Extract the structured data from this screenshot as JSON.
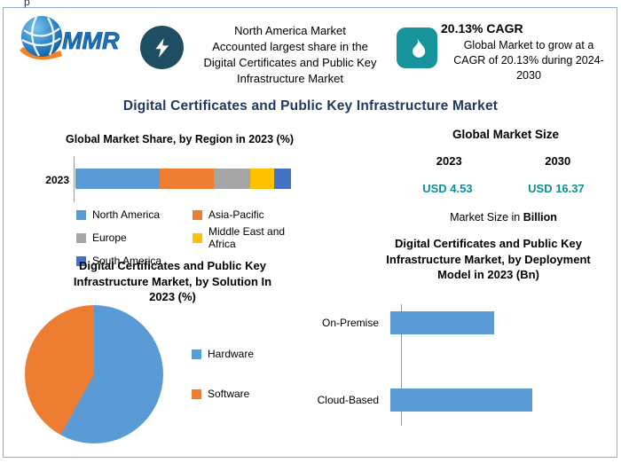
{
  "stray_text": "p",
  "title": "Digital Certificates and Public Key Infrastructure Market",
  "colors": {
    "title": "#1F3864",
    "teal": "#0E8F8F",
    "icon_dark": "#1F4E63",
    "icon_teal": "#17949B",
    "border": "#8FAADC",
    "axis": "#9A9A9A"
  },
  "header": {
    "logo_text": "MMR",
    "callout_share": {
      "text": "North America Market\nAccounted largest share in the\nDigital Certificates and Public Key\nInfrastructure Market"
    },
    "callout_cagr": {
      "title": "20.13% CAGR",
      "text": "Global Market to grow at a\nCAGR of 20.13% during 2024-\n2030"
    }
  },
  "market_size": {
    "title": "Global Market Size",
    "years": [
      "2023",
      "2030"
    ],
    "values": [
      "USD 4.53",
      "USD 16.37"
    ],
    "note_prefix": "Market Size in ",
    "note_unit": "Billion"
  },
  "chart_data": [
    {
      "type": "bar",
      "variant": "stacked-horizontal",
      "title": "Global Market Share, by Region in 2023 (%)",
      "categories": [
        "2023"
      ],
      "xlim": [
        0,
        100
      ],
      "legend_position": "bottom",
      "series": [
        {
          "name": "North America",
          "value": 39,
          "color": "#5B9BD5"
        },
        {
          "name": "Asia-Pacific",
          "value": 25,
          "color": "#ED7D31"
        },
        {
          "name": "Europe",
          "value": 17,
          "color": "#A5A5A5"
        },
        {
          "name": "Middle East and Africa",
          "value": 11,
          "color": "#FFC000"
        },
        {
          "name": "South America",
          "value": 8,
          "color": "#4472C4"
        }
      ]
    },
    {
      "type": "pie",
      "title": "Digital Certificates and Public Key\nInfrastructure Market, by Solution In\n2023 (%)",
      "labels": [
        "Hardware",
        "Software"
      ],
      "values": [
        58,
        42
      ],
      "colors": [
        "#5B9BD5",
        "#ED7D31"
      ],
      "legend_position": "right"
    },
    {
      "type": "bar",
      "variant": "horizontal",
      "title": "Digital Certificates and Public Key\nInfrastructure Market, by Deployment\nModel in 2023 (Bn)",
      "categories": [
        "On-Premise",
        "Cloud-Based"
      ],
      "values": [
        1.9,
        2.6
      ],
      "color": "#5B9BD5"
    }
  ]
}
